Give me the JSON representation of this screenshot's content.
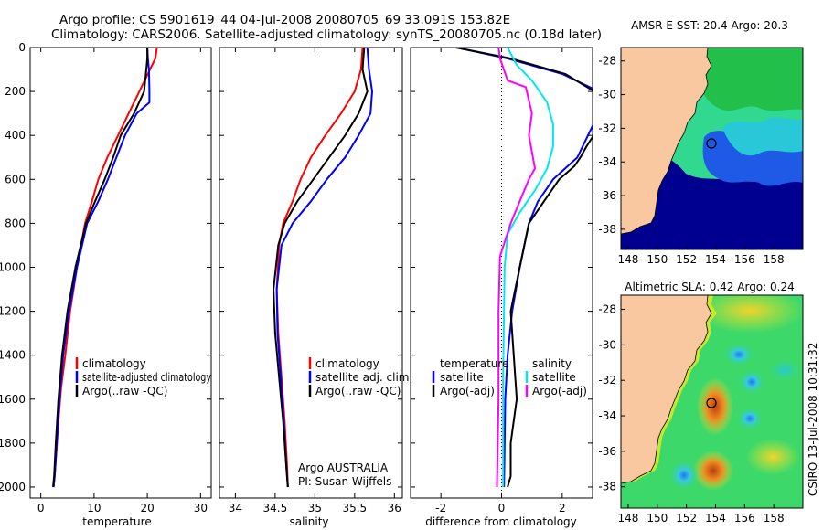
{
  "header": {
    "line1": "Argo profile: CS 5901619_44 04-Jul-2008 20080705_69 33.091S 153.82E",
    "line2": "Climatology: CARS2006. Satellite-adjusted climatology: synTS_20080705.nc (0.18d later)"
  },
  "side_label": "CSIRO 13-Jul-2008 10:31:32",
  "colors": {
    "climatology": "#ff0000",
    "satellite": "#0000ff",
    "argo": "#000000",
    "sat_sal": "#00e8ee",
    "argo_sal": "#ff00ff",
    "land": "#fac8a0"
  },
  "chart_data": [
    {
      "type": "line",
      "xlabel": "temperature",
      "xlim": [
        -2,
        32
      ],
      "ylim": [
        2050,
        0
      ],
      "xticks": [
        0,
        10,
        20,
        30
      ],
      "yticks": [
        0,
        200,
        400,
        600,
        800,
        1000,
        1200,
        1400,
        1600,
        1800,
        2000
      ],
      "legend": {
        "placement": "lower-right",
        "entries": [
          "climatology",
          "satellite-adjusted climatology",
          "Argo(..raw -QC)"
        ]
      },
      "series": [
        {
          "name": "climatology",
          "color": "#ff0000",
          "x": [
            21.8,
            21.5,
            20.5,
            18.5,
            16.5,
            14.5,
            12.5,
            10.8,
            9.6,
            8.3,
            6.8,
            5.5,
            4.6,
            3.8,
            3.3,
            2.9,
            2.6,
            2.4
          ],
          "y": [
            0,
            50,
            100,
            200,
            300,
            400,
            500,
            600,
            700,
            800,
            1000,
            1200,
            1400,
            1550,
            1700,
            1850,
            1950,
            2000
          ]
        },
        {
          "name": "satellite-adjusted climatology",
          "color": "#0000ff",
          "x": [
            20.0,
            20.1,
            20.3,
            20.4,
            20.4,
            18.0,
            15.8,
            14.2,
            12.6,
            10.8,
            8.7,
            6.8,
            5.3,
            4.2,
            3.5,
            3.0,
            2.6,
            2.4
          ],
          "y": [
            0,
            50,
            100,
            200,
            250,
            300,
            400,
            500,
            600,
            700,
            800,
            1000,
            1200,
            1400,
            1600,
            1800,
            1950,
            2000
          ]
        },
        {
          "name": "Argo(..raw -QC)",
          "color": "#000000",
          "x": [
            20.0,
            20.0,
            19.8,
            19.4,
            17.5,
            15.0,
            13.6,
            12.0,
            10.2,
            8.5,
            6.5,
            5.0,
            4.0,
            3.3,
            2.8,
            2.5,
            2.3
          ],
          "y": [
            0,
            50,
            100,
            200,
            300,
            400,
            500,
            600,
            700,
            800,
            1000,
            1200,
            1400,
            1600,
            1800,
            1950,
            2000
          ]
        }
      ]
    },
    {
      "type": "line",
      "xlabel": "salinity",
      "xlim": [
        33.8,
        36.1
      ],
      "ylim": [
        2050,
        0
      ],
      "xticks": [
        34,
        34.5,
        35,
        35.5,
        36
      ],
      "legend": {
        "placement": "lower-right",
        "entries": [
          "climatology",
          "satellite adj. clim.",
          "Argo(..raw -QC)"
        ]
      },
      "annotations": [
        "Argo AUSTRALIA",
        "PI: Susan Wijffels"
      ],
      "series": [
        {
          "name": "climatology",
          "color": "#ff0000",
          "x": [
            35.6,
            35.58,
            35.5,
            35.33,
            35.13,
            34.95,
            34.82,
            34.72,
            34.6,
            34.55,
            34.52,
            34.54,
            34.58,
            34.62,
            34.65,
            34.66
          ],
          "y": [
            0,
            100,
            200,
            300,
            400,
            500,
            600,
            700,
            800,
            900,
            1100,
            1300,
            1500,
            1700,
            1900,
            2000
          ]
        },
        {
          "name": "satellite adj. clim.",
          "color": "#0000ff",
          "x": [
            35.66,
            35.68,
            35.72,
            35.7,
            35.55,
            35.38,
            35.15,
            34.95,
            34.72,
            34.58,
            34.52,
            34.53,
            34.57,
            34.61,
            34.64,
            34.66
          ],
          "y": [
            0,
            100,
            200,
            300,
            400,
            500,
            600,
            700,
            800,
            900,
            1100,
            1300,
            1500,
            1700,
            1900,
            2000
          ]
        },
        {
          "name": "Argo(..raw -QC)",
          "color": "#000000",
          "x": [
            35.62,
            35.6,
            35.66,
            35.55,
            35.38,
            35.18,
            34.98,
            34.78,
            34.62,
            34.54,
            34.48,
            34.5,
            34.55,
            34.6,
            34.64,
            34.66
          ],
          "y": [
            0,
            100,
            200,
            300,
            400,
            500,
            600,
            700,
            800,
            900,
            1100,
            1300,
            1500,
            1700,
            1900,
            2000
          ]
        }
      ]
    },
    {
      "type": "line",
      "xlabel": "difference from climatology",
      "xlim": [
        -3,
        3
      ],
      "ylim": [
        2050,
        0
      ],
      "xticks": [
        -2,
        0,
        2
      ],
      "legend": {
        "placement": "lower",
        "entries": [
          "temperature",
          "satellite",
          "Argo(-adj)",
          "salinity",
          "satellite",
          "Argo(-adj)"
        ]
      },
      "series": [
        {
          "name": "temperature satellite",
          "color": "#0000ff",
          "x": [
            -1.5,
            0.2,
            2.0,
            3.2,
            3.2,
            2.5,
            1.7,
            1.2,
            0.9,
            0.6,
            0.35,
            0.2,
            0.12,
            0.08
          ],
          "y": [
            0,
            50,
            120,
            200,
            300,
            500,
            600,
            700,
            800,
            1000,
            1200,
            1400,
            1600,
            2000
          ]
        },
        {
          "name": "temperature Argo(-adj)",
          "color": "#000000",
          "x": [
            -1.5,
            0.3,
            2.1,
            3.3,
            3.5,
            2.8,
            2.6,
            2.4,
            1.9,
            1.4,
            0.9,
            0.6,
            0.3,
            0.5,
            0.3,
            0.3,
            0.2
          ],
          "y": [
            0,
            50,
            120,
            220,
            300,
            450,
            500,
            540,
            600,
            700,
            800,
            1000,
            1200,
            1600,
            1800,
            1950,
            2000
          ]
        },
        {
          "name": "salinity satellite",
          "color": "#00e8ee",
          "x": [
            0.2,
            0.5,
            1.0,
            1.5,
            1.7,
            1.7,
            1.5,
            1.1,
            0.6,
            0.2,
            0.1,
            0.05,
            0.05
          ],
          "y": [
            0,
            80,
            150,
            250,
            350,
            450,
            550,
            650,
            750,
            850,
            1000,
            1500,
            2000
          ]
        },
        {
          "name": "salinity Argo(-adj)",
          "color": "#ff00ff",
          "x": [
            -0.1,
            -0.05,
            0.2,
            0.8,
            1.0,
            0.9,
            1.1,
            0.9,
            0.6,
            0.3,
            -0.05,
            -0.1,
            -0.1,
            -0.15
          ],
          "y": [
            0,
            50,
            150,
            180,
            300,
            400,
            550,
            600,
            700,
            800,
            950,
            1200,
            1600,
            2000
          ]
        }
      ]
    },
    {
      "type": "heatmap",
      "title": "AMSR-E SST: 20.4  Argo: 20.3",
      "xticks": [
        148,
        150,
        152,
        154,
        156,
        158
      ],
      "yticks": [
        -28,
        -30,
        -32,
        -34,
        -36,
        -38
      ],
      "xlim": [
        147.5,
        160
      ],
      "ylim": [
        -39.2,
        -27.2
      ],
      "marker": {
        "lon": 153.82,
        "lat": -33.091
      }
    },
    {
      "type": "heatmap",
      "title": "Altimetric SLA: 0.42  Argo: 0.24",
      "xticks": [
        148,
        150,
        152,
        154,
        156,
        158
      ],
      "yticks": [
        -28,
        -30,
        -32,
        -34,
        -36,
        -38
      ],
      "xlim": [
        147.5,
        160
      ],
      "ylim": [
        -39.2,
        -27.2
      ],
      "marker": {
        "lon": 153.82,
        "lat": -33.091
      }
    }
  ]
}
